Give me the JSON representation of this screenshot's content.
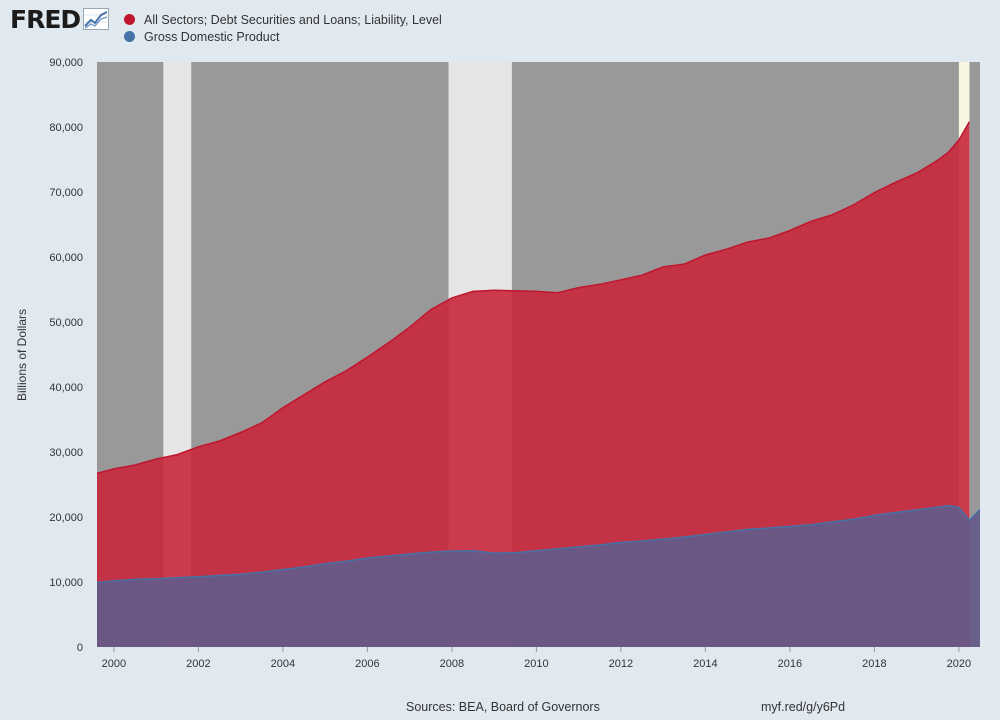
{
  "logo": {
    "text": "FRED",
    "icon": "fred-graph-icon"
  },
  "footer": {
    "sources": "Sources: BEA, Board of Governors",
    "link": "myf.red/g/y6Pd"
  },
  "colors": {
    "page_background": "#e1e9f0",
    "plot_background": "#999999",
    "recession_shading": "#e5e5e5",
    "forecast_shading": "#f8f6e1",
    "debt_fill": "#c8283c",
    "debt_line": "#c0152f",
    "gdp_fill": "#645a8a",
    "gdp_line": "#4572a7",
    "gdp_legend": "#4572a7"
  },
  "chart_data": {
    "type": "area",
    "title": "",
    "xlabel": "",
    "ylabel": "Billions of Dollars",
    "xlim": [
      1999.6,
      2020.5
    ],
    "ylim": [
      0,
      90000
    ],
    "grid": false,
    "legend_position": "top-left",
    "x_ticks": [
      "2000",
      "2002",
      "2004",
      "2006",
      "2008",
      "2010",
      "2012",
      "2014",
      "2016",
      "2018",
      "2020"
    ],
    "y_ticks": [
      "0",
      "10,000",
      "20,000",
      "30,000",
      "40,000",
      "50,000",
      "60,000",
      "70,000",
      "80,000",
      "90,000"
    ],
    "recessions": [
      [
        2001.17,
        2001.83
      ],
      [
        2007.92,
        2009.42
      ]
    ],
    "highlighted_periods": [
      [
        2020.0,
        2020.25
      ]
    ],
    "series": [
      {
        "name": "All Sectors; Debt Securities and Loans; Liability, Level",
        "color": "#c0152f",
        "x": [
          1999.6,
          2000.0,
          2000.5,
          2001.0,
          2001.5,
          2002.0,
          2002.5,
          2003.0,
          2003.5,
          2004.0,
          2004.5,
          2005.0,
          2005.5,
          2006.0,
          2006.5,
          2007.0,
          2007.5,
          2008.0,
          2008.5,
          2009.0,
          2009.5,
          2010.0,
          2010.5,
          2011.0,
          2011.5,
          2012.0,
          2012.5,
          2013.0,
          2013.5,
          2014.0,
          2014.5,
          2015.0,
          2015.5,
          2016.0,
          2016.5,
          2017.0,
          2017.5,
          2018.0,
          2018.5,
          2019.0,
          2019.5,
          2019.75,
          2020.0,
          2020.25
        ],
        "values": [
          26700,
          27400,
          28000,
          28900,
          29600,
          30800,
          31700,
          33000,
          34500,
          36800,
          38800,
          40800,
          42500,
          44600,
          46800,
          49200,
          51900,
          53700,
          54700,
          54900,
          54800,
          54700,
          54500,
          55300,
          55800,
          56500,
          57200,
          58500,
          58900,
          60300,
          61200,
          62300,
          62900,
          64100,
          65500,
          66500,
          68000,
          69900,
          71500,
          72900,
          74900,
          76100,
          78000,
          80800
        ]
      },
      {
        "name": "Gross Domestic Product",
        "color": "#4572a7",
        "x": [
          1999.6,
          2000.0,
          2000.5,
          2001.0,
          2001.5,
          2002.0,
          2002.5,
          2003.0,
          2003.5,
          2004.0,
          2004.5,
          2005.0,
          2005.5,
          2006.0,
          2006.5,
          2007.0,
          2007.5,
          2008.0,
          2008.5,
          2009.0,
          2009.5,
          2010.0,
          2010.5,
          2011.0,
          2011.5,
          2012.0,
          2012.5,
          2013.0,
          2013.5,
          2014.0,
          2014.5,
          2015.0,
          2015.5,
          2016.0,
          2016.5,
          2017.0,
          2017.5,
          2018.0,
          2018.5,
          2019.0,
          2019.5,
          2019.75,
          2020.0,
          2020.25,
          2020.5
        ],
        "values": [
          9900,
          10200,
          10400,
          10500,
          10650,
          10800,
          11000,
          11200,
          11500,
          11900,
          12300,
          12800,
          13200,
          13700,
          14000,
          14300,
          14600,
          14750,
          14800,
          14450,
          14500,
          14800,
          15100,
          15400,
          15700,
          16100,
          16300,
          16600,
          16900,
          17300,
          17700,
          18100,
          18300,
          18550,
          18800,
          19250,
          19650,
          20250,
          20700,
          21100,
          21500,
          21750,
          21500,
          19500,
          21150
        ]
      }
    ]
  }
}
